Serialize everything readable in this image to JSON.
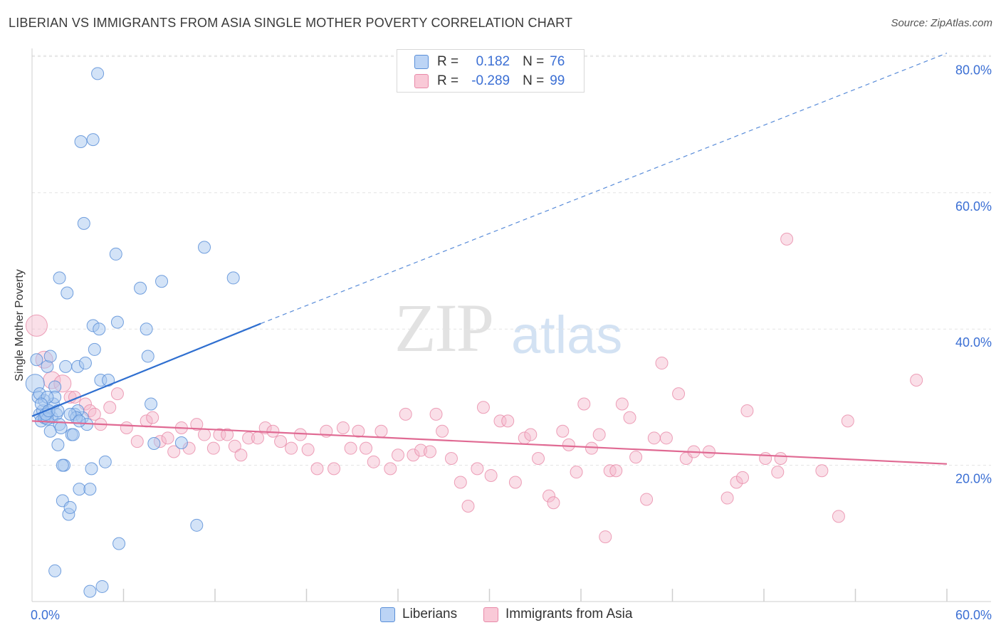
{
  "title": "LIBERIAN VS IMMIGRANTS FROM ASIA SINGLE MOTHER POVERTY CORRELATION CHART",
  "source": "Source: ZipAtlas.com",
  "watermark": {
    "zip": "ZIP",
    "atlas": "atlas"
  },
  "colors": {
    "blue_fill": "#a8c8f0",
    "blue_stroke": "#5a8fd8",
    "blue_line": "#2f6fd0",
    "pink_fill": "#f5b8cb",
    "pink_stroke": "#e889a8",
    "pink_line": "#e06a93",
    "tick_text": "#3b6fd4",
    "grid": "#e3e3e3"
  },
  "legend": {
    "rows": [
      {
        "r_label": "R =",
        "r_value": "0.182",
        "n_label": "N =",
        "n_value": "76"
      },
      {
        "r_label": "R =",
        "r_value": "-0.289",
        "n_label": "N =",
        "n_value": "99"
      }
    ]
  },
  "bottom_legend": [
    "Liberians",
    "Immigrants from Asia"
  ],
  "chart_data": {
    "type": "scatter",
    "title": "LIBERIAN VS IMMIGRANTS FROM ASIA SINGLE MOTHER POVERTY CORRELATION CHART",
    "ylabel": "Single Mother Poverty",
    "xlabel": "",
    "xlim": [
      0,
      60
    ],
    "ylim": [
      0,
      82
    ],
    "x_tick_labels": [
      "0.0%",
      "60.0%"
    ],
    "y_ticks": [
      20,
      40,
      60,
      80
    ],
    "y_tick_labels": [
      "20.0%",
      "40.0%",
      "60.0%",
      "80.0%"
    ],
    "grid": "horizontal dashed",
    "legend_placement": "top-center",
    "series": [
      {
        "name": "Liberians",
        "color": "blue",
        "R": 0.182,
        "N": 76,
        "trend": {
          "x": [
            0,
            15
          ],
          "y": [
            27.2,
            40.8
          ],
          "extended_to": [
            60,
            80.5
          ]
        },
        "points": [
          [
            0.2,
            32
          ],
          [
            0.3,
            35.5
          ],
          [
            0.4,
            30
          ],
          [
            0.5,
            27.5
          ],
          [
            0.6,
            26.5
          ],
          [
            0.7,
            28
          ],
          [
            0.8,
            29.5
          ],
          [
            0.9,
            27
          ],
          [
            1.0,
            34.5
          ],
          [
            1.1,
            27.8
          ],
          [
            1.2,
            36
          ],
          [
            1.2,
            25
          ],
          [
            1.3,
            27
          ],
          [
            1.4,
            29
          ],
          [
            1.5,
            31.5
          ],
          [
            1.6,
            27.5
          ],
          [
            1.7,
            23
          ],
          [
            1.8,
            26
          ],
          [
            1.9,
            25.5
          ],
          [
            2.0,
            14.8
          ],
          [
            2.1,
            20
          ],
          [
            2.2,
            34.5
          ],
          [
            2.4,
            12.8
          ],
          [
            2.5,
            13.8
          ],
          [
            2.6,
            24.5
          ],
          [
            2.7,
            24.5
          ],
          [
            2.8,
            27.5
          ],
          [
            3.0,
            34.5
          ],
          [
            3.1,
            16.5
          ],
          [
            3.2,
            67.5
          ],
          [
            3.3,
            27
          ],
          [
            3.4,
            55.5
          ],
          [
            3.5,
            35
          ],
          [
            3.6,
            26
          ],
          [
            3.8,
            1.5
          ],
          [
            3.8,
            16.5
          ],
          [
            3.9,
            19.5
          ],
          [
            4.0,
            67.8
          ],
          [
            4.0,
            40.5
          ],
          [
            4.1,
            37
          ],
          [
            4.3,
            77.5
          ],
          [
            4.4,
            40
          ],
          [
            4.5,
            32.5
          ],
          [
            4.6,
            2.2
          ],
          [
            4.8,
            20.5
          ],
          [
            5.0,
            32.5
          ],
          [
            5.5,
            51
          ],
          [
            5.6,
            41
          ],
          [
            5.7,
            8.5
          ],
          [
            7.1,
            46
          ],
          [
            7.5,
            40
          ],
          [
            7.6,
            36
          ],
          [
            7.8,
            29
          ],
          [
            8.0,
            23.2
          ],
          [
            8.5,
            47
          ],
          [
            9.8,
            23.3
          ],
          [
            10.8,
            11.2
          ],
          [
            11.3,
            52
          ],
          [
            13.2,
            47.5
          ],
          [
            0.5,
            30.5
          ],
          [
            0.8,
            27
          ],
          [
            1.0,
            26.8
          ],
          [
            1.5,
            30
          ],
          [
            2.0,
            20
          ],
          [
            1.8,
            47.5
          ],
          [
            2.3,
            45.3
          ],
          [
            1.0,
            30
          ],
          [
            0.6,
            29
          ],
          [
            3.0,
            28
          ],
          [
            2.9,
            27
          ],
          [
            1.5,
            4.5
          ],
          [
            0.9,
            27.5
          ],
          [
            1.1,
            28
          ],
          [
            2.5,
            27.5
          ],
          [
            1.7,
            28
          ],
          [
            3.1,
            26.5
          ]
        ]
      },
      {
        "name": "Immigrants from Asia",
        "color": "pink",
        "R": -0.289,
        "N": 99,
        "trend": {
          "x": [
            0,
            60
          ],
          "y": [
            26.5,
            20.2
          ]
        },
        "points": [
          [
            0.3,
            40.5
          ],
          [
            0.8,
            35.5
          ],
          [
            1.3,
            32.5
          ],
          [
            2.0,
            32
          ],
          [
            2.5,
            30
          ],
          [
            2.8,
            30
          ],
          [
            3.5,
            29
          ],
          [
            3.8,
            28
          ],
          [
            4.1,
            27.5
          ],
          [
            4.5,
            26
          ],
          [
            5.1,
            28.5
          ],
          [
            5.6,
            30.5
          ],
          [
            6.2,
            25.5
          ],
          [
            6.9,
            23.5
          ],
          [
            7.5,
            26.5
          ],
          [
            7.9,
            27
          ],
          [
            8.4,
            23.5
          ],
          [
            8.9,
            24
          ],
          [
            9.3,
            22
          ],
          [
            9.8,
            25.5
          ],
          [
            10.3,
            22.5
          ],
          [
            10.8,
            26
          ],
          [
            11.3,
            24.5
          ],
          [
            11.9,
            22.5
          ],
          [
            12.3,
            24.5
          ],
          [
            12.8,
            24.5
          ],
          [
            13.3,
            22.8
          ],
          [
            13.7,
            21.5
          ],
          [
            14.2,
            24
          ],
          [
            14.8,
            24
          ],
          [
            15.3,
            25.5
          ],
          [
            15.8,
            25
          ],
          [
            16.3,
            23.5
          ],
          [
            17.0,
            22.5
          ],
          [
            17.6,
            24.5
          ],
          [
            18.1,
            22.3
          ],
          [
            18.7,
            19.5
          ],
          [
            19.3,
            25
          ],
          [
            19.8,
            19.5
          ],
          [
            20.4,
            25.5
          ],
          [
            20.9,
            22.5
          ],
          [
            21.4,
            25
          ],
          [
            21.9,
            22.5
          ],
          [
            22.4,
            20.5
          ],
          [
            22.9,
            25
          ],
          [
            23.5,
            19.5
          ],
          [
            24.0,
            21.5
          ],
          [
            24.5,
            27.5
          ],
          [
            25.0,
            21.5
          ],
          [
            25.5,
            22.2
          ],
          [
            26.1,
            22
          ],
          [
            26.5,
            27.5
          ],
          [
            26.9,
            25
          ],
          [
            27.5,
            21
          ],
          [
            28.1,
            17.5
          ],
          [
            28.6,
            14
          ],
          [
            29.2,
            19.5
          ],
          [
            29.6,
            28.5
          ],
          [
            30.1,
            18.5
          ],
          [
            30.7,
            26.5
          ],
          [
            31.2,
            26.5
          ],
          [
            31.7,
            17.5
          ],
          [
            32.3,
            24
          ],
          [
            32.7,
            24.5
          ],
          [
            33.2,
            21
          ],
          [
            33.9,
            15.5
          ],
          [
            34.2,
            14.5
          ],
          [
            34.8,
            25
          ],
          [
            35.2,
            23
          ],
          [
            35.7,
            19
          ],
          [
            36.2,
            29
          ],
          [
            36.7,
            22.5
          ],
          [
            37.2,
            24.5
          ],
          [
            37.6,
            9.5
          ],
          [
            37.9,
            19.2
          ],
          [
            38.3,
            19.2
          ],
          [
            38.7,
            29
          ],
          [
            39.2,
            27
          ],
          [
            39.6,
            21.2
          ],
          [
            40.3,
            15
          ],
          [
            40.8,
            24
          ],
          [
            41.3,
            35
          ],
          [
            41.6,
            24
          ],
          [
            42.4,
            30.5
          ],
          [
            42.9,
            21
          ],
          [
            43.4,
            22
          ],
          [
            44.4,
            22
          ],
          [
            45.6,
            15.2
          ],
          [
            46.2,
            17.5
          ],
          [
            46.6,
            18.2
          ],
          [
            46.9,
            28
          ],
          [
            48.1,
            21
          ],
          [
            48.9,
            19
          ],
          [
            49.1,
            21
          ],
          [
            49.5,
            53.2
          ],
          [
            51.8,
            19.2
          ],
          [
            52.9,
            12.5
          ],
          [
            53.5,
            26.5
          ],
          [
            58.0,
            32.5
          ]
        ]
      }
    ]
  }
}
